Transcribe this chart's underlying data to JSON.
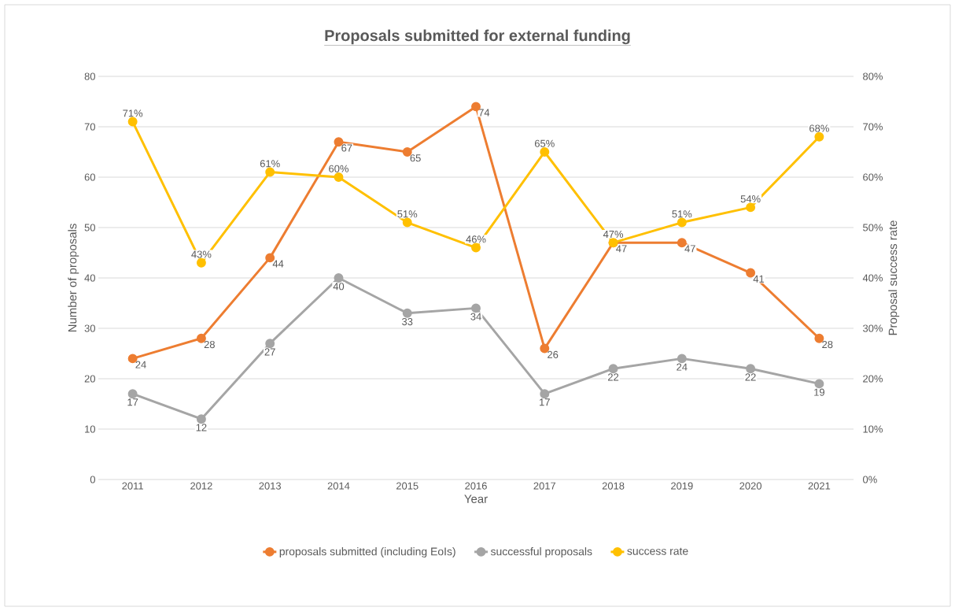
{
  "chart_data": {
    "type": "line",
    "title": "Proposals submitted for external funding",
    "xlabel": "Year",
    "ylabel": "Number of proposals",
    "y2label": "Proposal success rate",
    "categories": [
      "2011",
      "2012",
      "2013",
      "2014",
      "2015",
      "2016",
      "2017",
      "2018",
      "2019",
      "2020",
      "2021"
    ],
    "series": [
      {
        "name": "proposals submitted (including EoIs)",
        "color": "#ed7d31",
        "values": [
          24,
          28,
          44,
          67,
          65,
          74,
          26,
          47,
          47,
          41,
          28
        ],
        "value_labels": [
          "24",
          "28",
          "44",
          "67",
          "65",
          "74",
          "26",
          "47",
          "47",
          "41",
          "28"
        ]
      },
      {
        "name": "successful proposals",
        "color": "#a5a5a5",
        "values": [
          17,
          12,
          27,
          40,
          33,
          34,
          17,
          22,
          24,
          22,
          19
        ],
        "value_labels": [
          "17",
          "12",
          "27",
          "40",
          "33",
          "34",
          "17",
          "22",
          "24",
          "22",
          "19"
        ]
      },
      {
        "name": "success rate",
        "color": "#ffc000",
        "axis": "y2",
        "values": [
          71,
          43,
          61,
          60,
          51,
          46,
          65,
          47,
          51,
          54,
          68
        ],
        "value_labels": [
          "71%",
          "43%",
          "61%",
          "60%",
          "51%",
          "46%",
          "65%",
          "47%",
          "51%",
          "54%",
          "68%"
        ]
      }
    ],
    "ylim": [
      0,
      80
    ],
    "yticks": [
      0,
      10,
      20,
      30,
      40,
      50,
      60,
      70,
      80
    ],
    "y2lim": [
      0,
      80
    ],
    "y2ticks": [
      {
        "value": 0,
        "label": "0%"
      },
      {
        "value": 10,
        "label": "10%"
      },
      {
        "value": 20,
        "label": "20%"
      },
      {
        "value": 30,
        "label": "30%"
      },
      {
        "value": 40,
        "label": "40%"
      },
      {
        "value": 50,
        "label": "50%"
      },
      {
        "value": 60,
        "label": "60%"
      },
      {
        "value": 70,
        "label": "70%"
      },
      {
        "value": 80,
        "label": "80%"
      }
    ],
    "grid": "y",
    "legend": "bottom",
    "marker": "circle",
    "line_style": "solid"
  }
}
